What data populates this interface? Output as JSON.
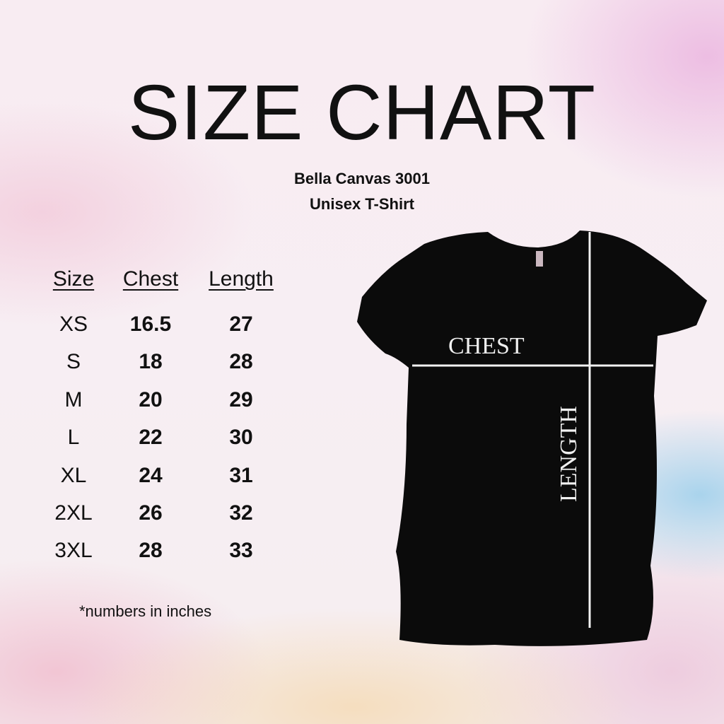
{
  "title": "SIZE CHART",
  "subtitle": [
    "Bella Canvas 3001",
    "Unisex T-Shirt"
  ],
  "table": {
    "headers": [
      "Size",
      "Chest",
      "Length"
    ],
    "rows": [
      [
        "XS",
        "16.5",
        "27"
      ],
      [
        "S",
        "18",
        "28"
      ],
      [
        "M",
        "20",
        "29"
      ],
      [
        "L",
        "22",
        "30"
      ],
      [
        "XL",
        "24",
        "31"
      ],
      [
        "2XL",
        "26",
        "32"
      ],
      [
        "3XL",
        "28",
        "33"
      ]
    ]
  },
  "footnote": "*numbers in inches",
  "shirt": {
    "chest_label": "CHEST",
    "length_label": "LENGTH",
    "color": "#0b0b0b"
  }
}
